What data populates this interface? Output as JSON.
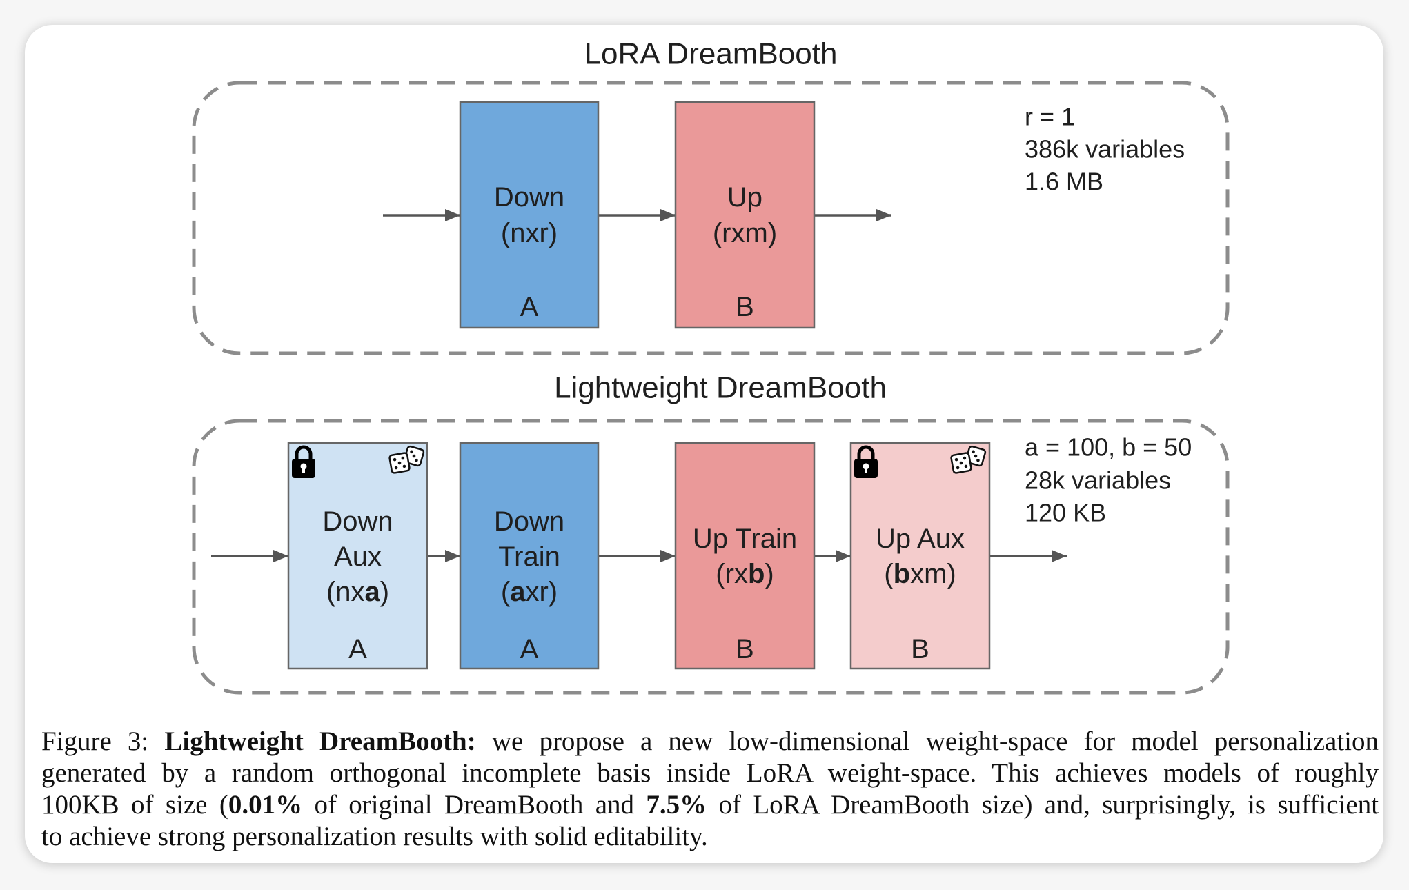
{
  "colors": {
    "down": "#6fa8dc",
    "up": "#ea9999",
    "down_aux": "#cfe2f3",
    "up_aux": "#f4cccc",
    "dashed": "#8c8c8c",
    "arrow": "#555555"
  },
  "icons": {
    "lock": "lock-icon",
    "dice": "dice-icon"
  },
  "lora": {
    "title": "LoRA DreamBooth",
    "down": {
      "line1": "Down",
      "line2": "(nxr)",
      "label": "A"
    },
    "up": {
      "line1": "Up",
      "line2": "(rxm)",
      "label": "B"
    },
    "stats": [
      "r = 1",
      "386k variables",
      "1.6 MB"
    ]
  },
  "lightweight": {
    "title": "Lightweight DreamBooth",
    "down_aux": {
      "line1": "Down",
      "line2": "Aux",
      "dim_pre": "(nx",
      "dim_bold": "a",
      "dim_post": ")",
      "label": "A"
    },
    "down_train": {
      "line1": "Down",
      "line2": "Train",
      "dim_pre": "(",
      "dim_bold": "a",
      "dim_post": "xr)",
      "label": "A"
    },
    "up_train": {
      "line1": "Up Train",
      "dim_pre": "(rx",
      "dim_bold": "b",
      "dim_post": ")",
      "label": "B"
    },
    "up_aux": {
      "line1": "Up Aux",
      "dim_pre": "(",
      "dim_bold": "b",
      "dim_post": "xm)",
      "label": "B"
    },
    "stats": [
      "a = 100, b = 50",
      "28k variables",
      "120 KB"
    ]
  },
  "caption": {
    "label": "Figure 3:",
    "title": "Lightweight DreamBooth:",
    "line1": "we propose a new low-dimensional weight-space for model personalization",
    "line2": "generated by a random orthogonal incomplete basis inside LoRA weight-space. This achieves models of roughly",
    "line3_a": "100KB of size (",
    "line3_bold_1": "0.01%",
    "line3_b": "of original DreamBooth and",
    "line3_bold_2": "7.5%",
    "line3_c": "of LoRA DreamBooth size) and, surprisingly, is sufficient",
    "line4": "to achieve strong personalization results with solid editability."
  }
}
